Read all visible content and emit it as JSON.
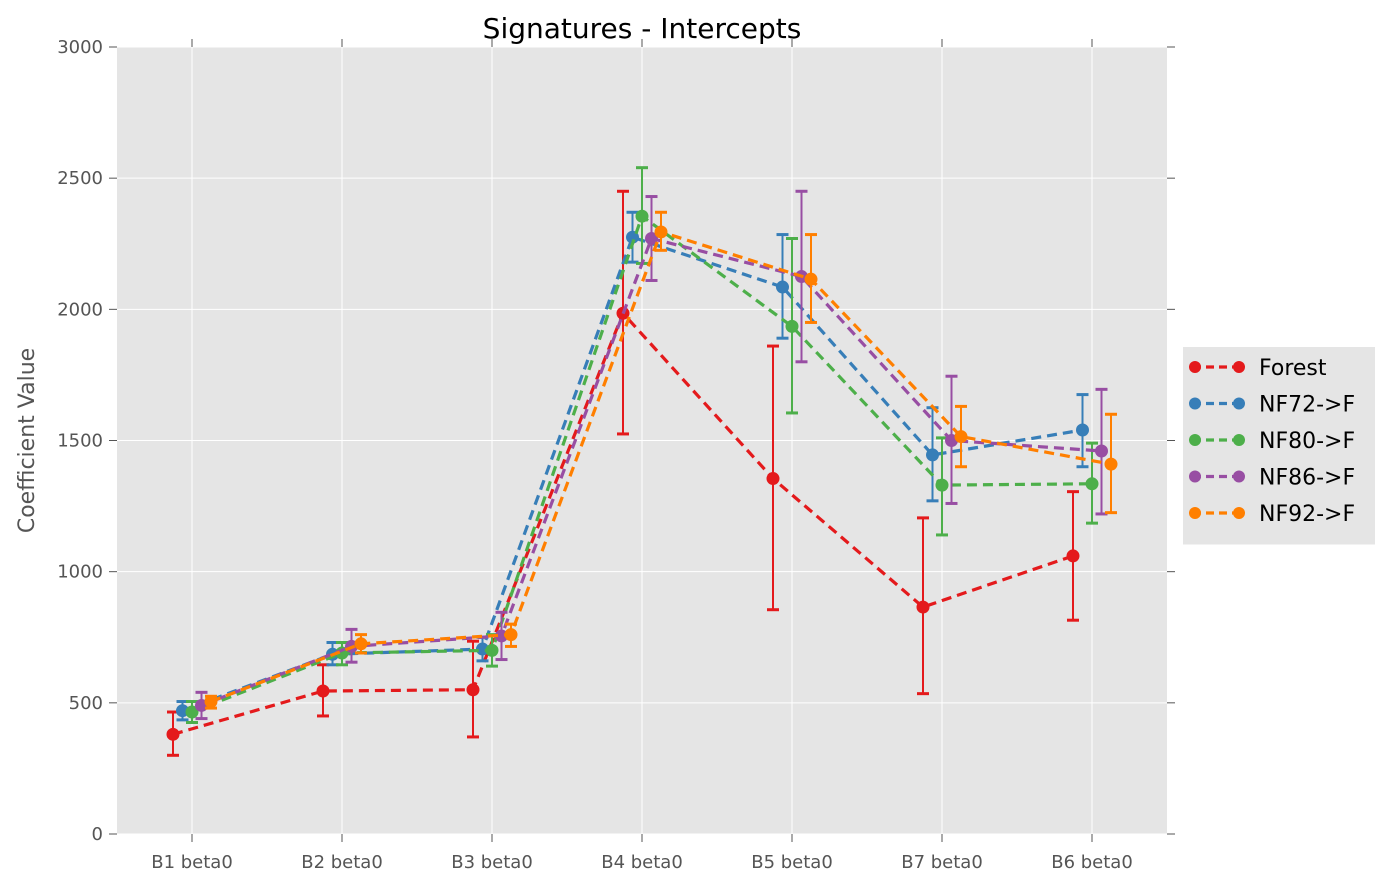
{
  "chart_data": {
    "type": "line",
    "title": "Signatures - Intercepts",
    "xlabel": "",
    "ylabel": "Coefficient Value",
    "ylim": [
      0,
      3000
    ],
    "yticks": [
      0,
      500,
      1000,
      1500,
      2000,
      2500,
      3000
    ],
    "categories": [
      "B1 beta0",
      "B2 beta0",
      "B3 beta0",
      "B4 beta0",
      "B5 beta0",
      "B7 beta0",
      "B6 beta0"
    ],
    "grid": true,
    "legend_position": "right",
    "series": [
      {
        "name": "Forest",
        "color": "#e41a1c",
        "values": [
          380,
          545,
          550,
          1985,
          1355,
          865,
          1060
        ],
        "err_low": [
          300,
          450,
          370,
          1525,
          855,
          535,
          815
        ],
        "err_high": [
          465,
          645,
          735,
          2450,
          1860,
          1205,
          1305
        ]
      },
      {
        "name": "NF72->F",
        "color": "#377eb8",
        "values": [
          470,
          685,
          705,
          2275,
          2085,
          1445,
          1540
        ],
        "err_low": [
          435,
          645,
          660,
          2180,
          1890,
          1270,
          1400
        ],
        "err_high": [
          505,
          730,
          750,
          2370,
          2285,
          1625,
          1675
        ]
      },
      {
        "name": "NF80->F",
        "color": "#4daf4a",
        "values": [
          465,
          690,
          700,
          2355,
          1935,
          1330,
          1335
        ],
        "err_low": [
          425,
          645,
          640,
          2175,
          1605,
          1140,
          1185
        ],
        "err_high": [
          505,
          730,
          760,
          2540,
          2270,
          1510,
          1490
        ]
      },
      {
        "name": "NF86->F",
        "color": "#984ea3",
        "values": [
          490,
          715,
          755,
          2270,
          2125,
          1500,
          1460
        ],
        "err_low": [
          440,
          655,
          665,
          2110,
          1800,
          1260,
          1220
        ],
        "err_high": [
          540,
          780,
          845,
          2430,
          2450,
          1745,
          1695
        ]
      },
      {
        "name": "NF92->F",
        "color": "#ff7f00",
        "values": [
          505,
          725,
          760,
          2295,
          2115,
          1515,
          1410
        ],
        "err_low": [
          480,
          690,
          715,
          2225,
          1950,
          1400,
          1225
        ],
        "err_high": [
          525,
          760,
          800,
          2370,
          2285,
          1630,
          1600
        ]
      }
    ]
  }
}
